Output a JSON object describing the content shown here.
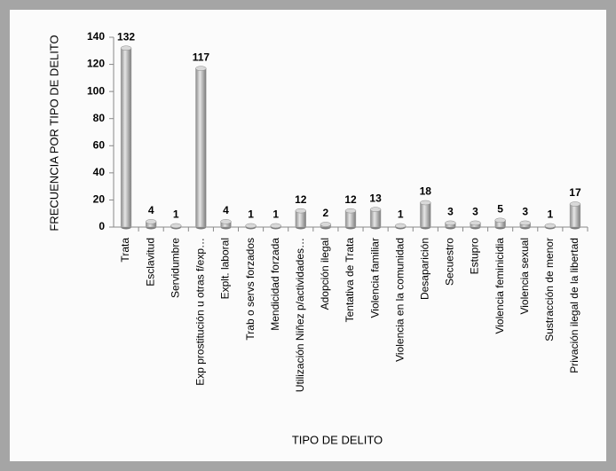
{
  "chart_data": {
    "type": "bar",
    "ylabel": "FRECUENCIA POR TIPO DE DELITO",
    "xlabel": "TIPO DE DELITO",
    "categories": [
      "Trata",
      "Esclavitud",
      "Servidumbre",
      "Exp prostitución u otras f/exp…",
      "Explt. laboral",
      "Trab o servs forzados",
      "Mendicidad forzada",
      "Utilización Niñez p/actividades…",
      "Adopción ilegal",
      "Tentativa de Trata",
      "Violencia familiar",
      "Violencia en la comunidad",
      "Desaparición",
      "Secuestro",
      "Estupro",
      "Violencia feminicidia",
      "Violencia sexual",
      "Sustracción de menor",
      "Privación ilegal de la libertad"
    ],
    "values": [
      132,
      4,
      1,
      117,
      4,
      1,
      1,
      12,
      2,
      12,
      13,
      1,
      18,
      3,
      3,
      5,
      3,
      1,
      17
    ],
    "color": "#a6a6a6",
    "ylim": [
      0,
      140
    ],
    "yticks": [
      0,
      20,
      40,
      60,
      80,
      100,
      120,
      140
    ],
    "grid": false
  }
}
